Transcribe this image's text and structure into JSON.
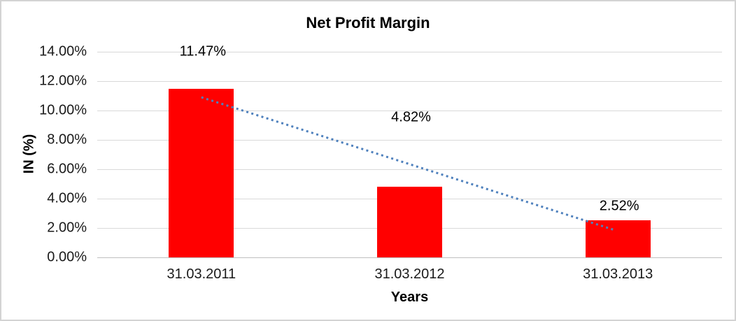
{
  "chart_data": {
    "type": "bar",
    "title": "Net Profit Margin",
    "categories": [
      "31.03.2011",
      "31.03.2012",
      "31.03.2013"
    ],
    "values": [
      11.47,
      4.82,
      2.52
    ],
    "data_labels": [
      "11.47%",
      "4.82%",
      "2.52%"
    ],
    "xlabel": "Years",
    "ylabel": "IN (%)",
    "ylim": [
      0,
      14
    ],
    "ytick_values": [
      14,
      12,
      10,
      8,
      6,
      4,
      2,
      0
    ],
    "ytick_labels": [
      "14.00%",
      "12.00%",
      "10.00%",
      "8.00%",
      "6.00%",
      "4.00%",
      "2.00%",
      "0.00%"
    ],
    "grid": true,
    "legend": "none",
    "bar_color": "#ff0000",
    "trendline": {
      "type": "linear",
      "style": "dotted",
      "color": "#4f81bd",
      "start_value": 10.9,
      "end_value": 1.85
    }
  }
}
